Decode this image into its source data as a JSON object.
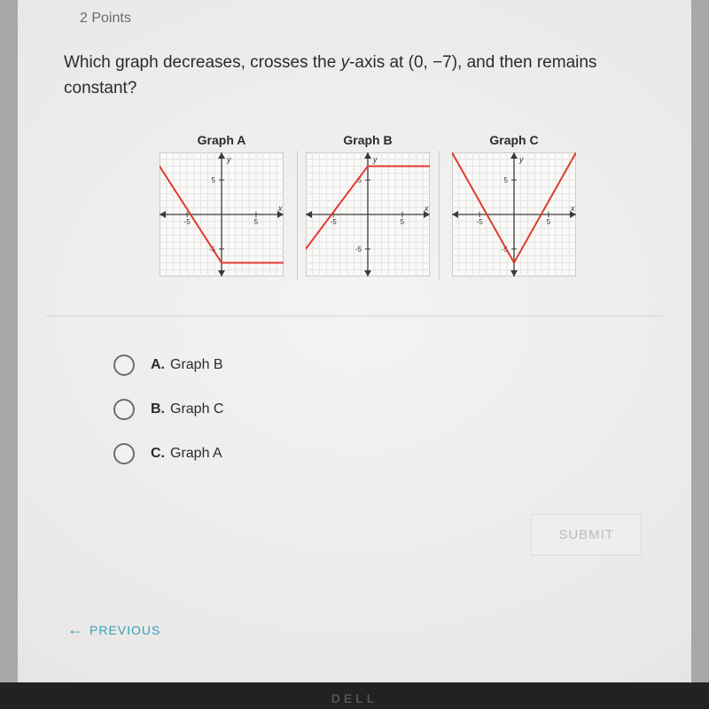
{
  "points_label": "2 Points",
  "question_pre": "Which graph decreases, crosses the ",
  "question_ital": "y",
  "question_post": "-axis at (0, −7), and then remains constant?",
  "graphs": {
    "titles": [
      "Graph A",
      "Graph B",
      "Graph C"
    ],
    "axis": {
      "x_label": "x",
      "y_label": "y",
      "tick_pos": 5,
      "tick_neg": -5,
      "range": 9,
      "grid_color": "#e5e3e1",
      "axis_color": "#3a3a3a",
      "tick_font": 8,
      "bg": "#faf9f7",
      "frame": "#9b9a97"
    },
    "curve_color": "#e03a2f",
    "curve_width": 2,
    "A": {
      "segments": [
        [
          [
            -9,
            7
          ],
          [
            0,
            -7
          ]
        ],
        [
          [
            0,
            -7
          ],
          [
            9,
            -7
          ]
        ]
      ]
    },
    "B": {
      "segments": [
        [
          [
            -9,
            -5
          ],
          [
            0,
            7
          ]
        ],
        [
          [
            0,
            7
          ],
          [
            9,
            7
          ]
        ]
      ]
    },
    "C": {
      "segments": [
        [
          [
            -9,
            9
          ],
          [
            0,
            -7
          ]
        ],
        [
          [
            0,
            -7
          ],
          [
            9,
            9
          ]
        ]
      ]
    }
  },
  "options": [
    {
      "letter": "A.",
      "text": "Graph B"
    },
    {
      "letter": "B.",
      "text": "Graph C"
    },
    {
      "letter": "C.",
      "text": "Graph A"
    }
  ],
  "submit_label": "SUBMIT",
  "previous_label": "PREVIOUS",
  "brand": "DELL"
}
